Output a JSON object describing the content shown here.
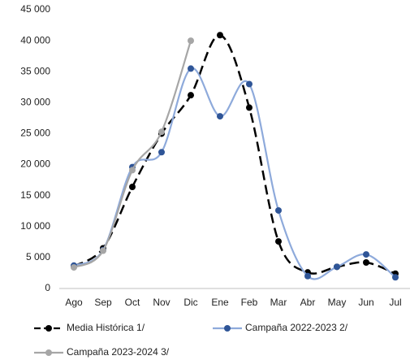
{
  "chart_data": {
    "type": "line",
    "categories": [
      "Ago",
      "Sep",
      "Oct",
      "Nov",
      "Dic",
      "Ene",
      "Feb",
      "Mar",
      "Abr",
      "May",
      "Jun",
      "Jul"
    ],
    "series": [
      {
        "name": "Media Histórica 1/",
        "color": "#000000",
        "marker_color": "#000000",
        "dash": true,
        "values": [
          3600,
          6500,
          16400,
          25000,
          31200,
          40900,
          29200,
          7600,
          2600,
          3500,
          4200,
          2400
        ]
      },
      {
        "name": "Campaña 2022-2023 2/",
        "color": "#8eaadb",
        "marker_color": "#2f5597",
        "dash": false,
        "values": [
          3700,
          6200,
          19600,
          22000,
          35500,
          27800,
          33000,
          12600,
          2000,
          3500,
          5500,
          1800
        ]
      },
      {
        "name": "Campaña 2023-2024 3/",
        "color": "#a6a6a6",
        "marker_color": "#a6a6a6",
        "dash": false,
        "values": [
          3400,
          6100,
          19100,
          25300,
          40000,
          null,
          null,
          null,
          null,
          null,
          null,
          null
        ]
      }
    ],
    "ylim": [
      0,
      45000
    ],
    "yticks": [
      0,
      {
        "value": 5000,
        "label": "5 000"
      },
      {
        "value": 10000,
        "label": "10 000"
      },
      {
        "value": 15000,
        "label": "15 000"
      },
      {
        "value": 20000,
        "label": "20 000"
      },
      {
        "value": 25000,
        "label": "25 000"
      },
      {
        "value": 30000,
        "label": "30 000"
      },
      {
        "value": 35000,
        "label": "35 000"
      },
      {
        "value": 40000,
        "label": "40 000"
      },
      {
        "value": 45000,
        "label": "45 000"
      }
    ],
    "grid": false
  }
}
